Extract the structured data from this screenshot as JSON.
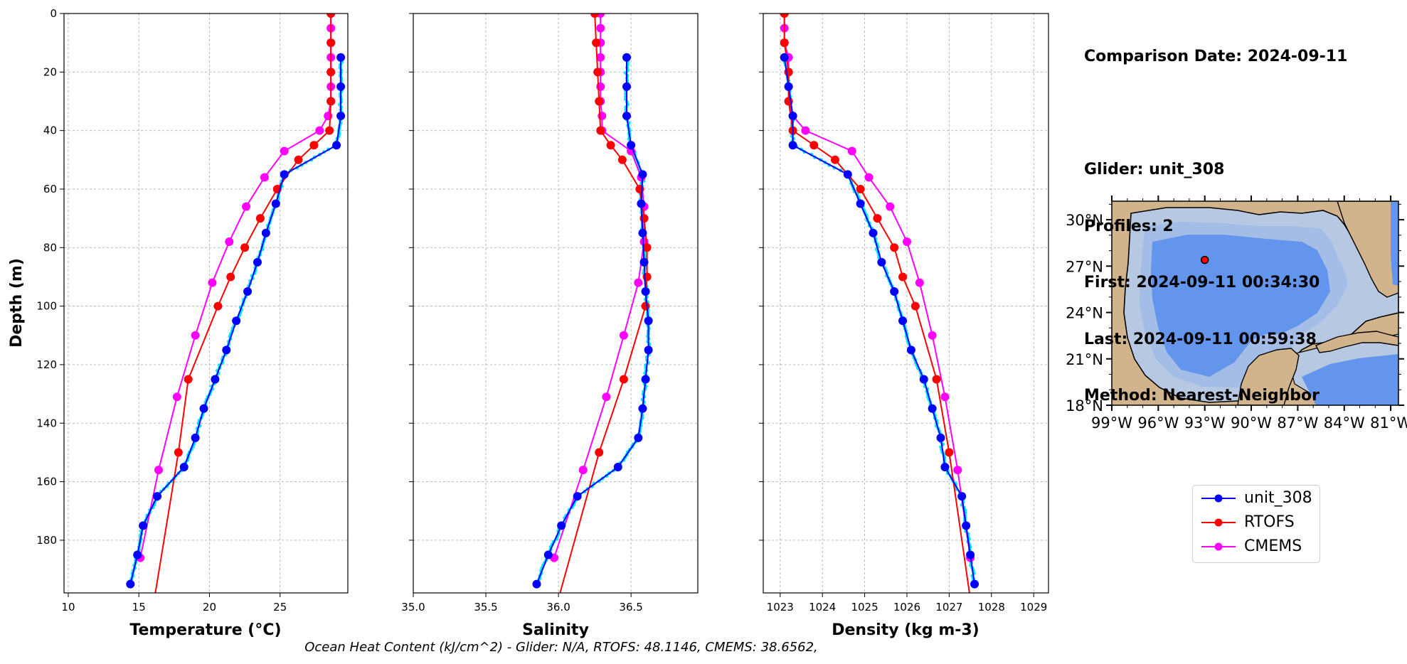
{
  "info": {
    "comparison_date": "Comparison Date: 2024-09-11",
    "glider": "Glider: unit_308",
    "profiles": "Profiles: 2",
    "first": "First: 2024-09-11 00:34:30",
    "last": "Last: 2024-09-11 00:59:38",
    "method": "Method: Nearest-Neighbor"
  },
  "footer": "Ocean Heat Content (kJ/cm^2) - Glider: N/A,  RTOFS: 48.1146,  CMEMS: 38.6562,",
  "legend": [
    {
      "name": "unit_308",
      "color": "#0000ff"
    },
    {
      "name": "RTOFS",
      "color": "#ff0000"
    },
    {
      "name": "CMEMS",
      "color": "#ff00ff"
    }
  ],
  "colors": {
    "glider_raw": "#00e5ff",
    "glider": "#0000ff",
    "rtofs": "#ff0000",
    "cmems": "#ff00ff",
    "grid": "#b0b0b0",
    "land": "#d2b48c",
    "shelf": "#b7c9e2",
    "mid": "#a4bde6",
    "deep": "#6495ed"
  },
  "chart_data": [
    {
      "type": "line",
      "ylabel": "Depth (m)",
      "xlabel": "Temperature (°C)",
      "xlim": [
        9.7,
        29.8
      ],
      "ylim": [
        198,
        0
      ],
      "xticks": [
        "10",
        "15",
        "20",
        "25"
      ],
      "xtick_values": [
        10,
        15,
        20,
        25
      ],
      "yticks": [
        "0",
        "20",
        "40",
        "60",
        "80",
        "100",
        "120",
        "140",
        "160",
        "180"
      ],
      "ytick_values": [
        0,
        20,
        40,
        60,
        80,
        100,
        120,
        140,
        160,
        180
      ],
      "grid": true,
      "series": [
        {
          "name": "unit_308",
          "depth": [
            15,
            25,
            35,
            45,
            55,
            65,
            75,
            85,
            95,
            105,
            115,
            125,
            135,
            145,
            155,
            165,
            175,
            185,
            195
          ],
          "values": [
            29.3,
            29.3,
            29.3,
            29.0,
            25.3,
            24.7,
            24.0,
            23.4,
            22.7,
            21.9,
            21.2,
            20.4,
            19.6,
            19.0,
            18.2,
            16.3,
            15.3,
            14.9,
            14.4
          ]
        },
        {
          "name": "RTOFS",
          "depth": [
            0,
            10,
            20,
            30,
            40,
            45,
            50,
            60,
            70,
            80,
            90,
            100,
            125,
            150,
            200
          ],
          "values": [
            28.6,
            28.6,
            28.6,
            28.6,
            28.5,
            27.4,
            26.3,
            24.8,
            23.6,
            22.5,
            21.5,
            20.6,
            18.5,
            17.8,
            16.1
          ]
        },
        {
          "name": "CMEMS",
          "depth": [
            0,
            5,
            10,
            15,
            20,
            25,
            30,
            35,
            40,
            47,
            56,
            66,
            78,
            92,
            110,
            131,
            156,
            186
          ],
          "values": [
            28.6,
            28.6,
            28.6,
            28.6,
            28.6,
            28.6,
            28.6,
            28.4,
            27.8,
            25.3,
            23.9,
            22.6,
            21.4,
            20.2,
            19.0,
            17.7,
            16.4,
            15.1
          ]
        }
      ]
    },
    {
      "type": "line",
      "xlabel": "Salinity",
      "xlim": [
        35.0,
        36.96
      ],
      "ylim": [
        198,
        0
      ],
      "xticks": [
        "35.0",
        "35.5",
        "36.0",
        "36.5"
      ],
      "xtick_values": [
        35.0,
        35.5,
        36.0,
        36.5
      ],
      "grid": true,
      "series": [
        {
          "name": "unit_308",
          "depth": [
            15,
            25,
            35,
            45,
            55,
            65,
            75,
            85,
            95,
            105,
            115,
            125,
            135,
            145,
            155,
            165,
            175,
            185,
            195
          ],
          "values": [
            36.47,
            36.47,
            36.47,
            36.5,
            36.58,
            36.57,
            36.58,
            36.59,
            36.6,
            36.62,
            36.62,
            36.6,
            36.58,
            36.55,
            36.41,
            36.13,
            36.02,
            35.93,
            35.85
          ]
        },
        {
          "name": "RTOFS",
          "depth": [
            0,
            10,
            20,
            30,
            40,
            45,
            50,
            60,
            70,
            80,
            90,
            100,
            125,
            150,
            200
          ],
          "values": [
            36.25,
            36.26,
            36.27,
            36.28,
            36.29,
            36.36,
            36.44,
            36.56,
            36.59,
            36.61,
            36.61,
            36.6,
            36.45,
            36.28,
            36.0
          ]
        },
        {
          "name": "CMEMS",
          "depth": [
            0,
            5,
            10,
            15,
            20,
            25,
            30,
            35,
            40,
            47,
            56,
            66,
            78,
            92,
            110,
            131,
            156,
            186
          ],
          "values": [
            36.29,
            36.29,
            36.29,
            36.29,
            36.29,
            36.29,
            36.29,
            36.3,
            36.3,
            36.5,
            36.57,
            36.59,
            36.59,
            36.55,
            36.45,
            36.33,
            36.17,
            35.97
          ]
        }
      ]
    },
    {
      "type": "line",
      "xlabel": "Density (kg m-3)",
      "xlim": [
        1022.6,
        1029.35
      ],
      "ylim": [
        198,
        0
      ],
      "xticks": [
        "1023",
        "1024",
        "1025",
        "1026",
        "1027",
        "1028",
        "1029"
      ],
      "xtick_values": [
        1023,
        1024,
        1025,
        1026,
        1027,
        1028,
        1029
      ],
      "grid": true,
      "series": [
        {
          "name": "unit_308",
          "depth": [
            15,
            25,
            35,
            45,
            55,
            65,
            75,
            85,
            95,
            105,
            115,
            125,
            135,
            145,
            155,
            165,
            175,
            185,
            195
          ],
          "values": [
            1023.1,
            1023.2,
            1023.3,
            1023.3,
            1024.6,
            1024.9,
            1025.2,
            1025.4,
            1025.7,
            1025.9,
            1026.1,
            1026.4,
            1026.6,
            1026.8,
            1026.9,
            1027.3,
            1027.4,
            1027.5,
            1027.6
          ]
        },
        {
          "name": "RTOFS",
          "depth": [
            0,
            10,
            20,
            30,
            40,
            45,
            50,
            60,
            70,
            80,
            90,
            100,
            125,
            150,
            200
          ],
          "values": [
            1023.1,
            1023.1,
            1023.2,
            1023.2,
            1023.3,
            1023.8,
            1024.3,
            1024.9,
            1025.3,
            1025.7,
            1025.9,
            1026.2,
            1026.7,
            1027.0,
            1027.5
          ]
        },
        {
          "name": "CMEMS",
          "depth": [
            0,
            5,
            10,
            15,
            20,
            25,
            30,
            35,
            40,
            47,
            56,
            66,
            78,
            92,
            110,
            131,
            156,
            186
          ],
          "values": [
            1023.1,
            1023.1,
            1023.1,
            1023.2,
            1023.2,
            1023.2,
            1023.2,
            1023.3,
            1023.6,
            1024.7,
            1025.1,
            1025.6,
            1026.0,
            1026.3,
            1026.6,
            1026.9,
            1027.2,
            1027.5
          ]
        }
      ]
    },
    {
      "type": "map",
      "lat_ticks": [
        "30°N",
        "27°N",
        "24°N",
        "21°N",
        "18°N"
      ],
      "lon_ticks": [
        "99°W",
        "96°W",
        "93°W",
        "90°W",
        "87°W",
        "84°W",
        "81°W"
      ],
      "lat_tick_values": [
        30,
        27,
        24,
        21,
        18
      ],
      "lon_tick_values": [
        -99,
        -96,
        -93,
        -90,
        -87,
        -84,
        -81
      ],
      "lat_range": [
        18,
        31.2
      ],
      "lon_range": [
        -99,
        -80.5
      ],
      "glider_position": {
        "lat": 27.4,
        "lon": -93.0
      }
    }
  ]
}
